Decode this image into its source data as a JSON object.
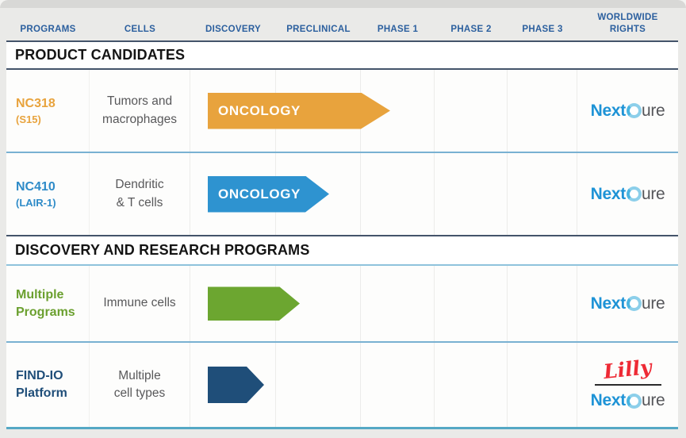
{
  "header": {
    "columns": [
      "PROGRAMS",
      "CELLS",
      "DISCOVERY",
      "PRECLINICAL",
      "PHASE 1",
      "PHASE 2",
      "PHASE 3",
      "WORLDWIDE RIGHTS"
    ]
  },
  "sections": [
    {
      "title": "PRODUCT CANDIDATES",
      "rows": [
        {
          "program_line1": "NC318",
          "program_line2": "(S15)",
          "program_color": "#E8A33D",
          "cells": [
            "Tumors and",
            "macrophages"
          ],
          "arrow": {
            "label": "ONCOLOGY",
            "color": "#E8A33D",
            "extent": "Discovery through Preclinical into Phase 1"
          },
          "rights": "NextCure"
        },
        {
          "program_line1": "NC410",
          "program_line2": "(LAIR-1)",
          "program_color": "#2E8BC8",
          "cells": [
            "Dendritic",
            "& T cells"
          ],
          "arrow": {
            "label": "ONCOLOGY",
            "color": "#2E93D0",
            "extent": "Discovery into Preclinical"
          },
          "rights": "NextCure"
        }
      ]
    },
    {
      "title": "DISCOVERY AND RESEARCH PROGRAMS",
      "rows": [
        {
          "program_line1": "Multiple",
          "program_line2": "Programs",
          "program_color": "#6BA02F",
          "cells": [
            "Immune cells"
          ],
          "arrow": {
            "label": "",
            "color": "#6CA630",
            "extent": "Discovery"
          },
          "rights": "NextCure"
        },
        {
          "program_line1": "FIND-IO",
          "program_line2": "Platform",
          "program_color": "#1F4E79",
          "cells": [
            "Multiple",
            "cell types"
          ],
          "arrow": {
            "label": "",
            "color": "#1F4E79",
            "extent": "Discovery"
          },
          "rights": "Lilly / NextCure"
        }
      ]
    }
  ],
  "logos": {
    "nextcure": {
      "next": "Next",
      "circle": "C-ring",
      "ure": "ure"
    },
    "lilly": "Lilly"
  },
  "colors": {
    "header_text": "#2B5F9E",
    "section_border": "#44546A",
    "row_divider": "#79B1D2",
    "bottom_border": "#55A8C5",
    "lilly_red": "#EE2A35",
    "nextcure_blue": "#1E93D6",
    "nextcure_gray": "#55565A",
    "cell_text": "#58585A"
  }
}
